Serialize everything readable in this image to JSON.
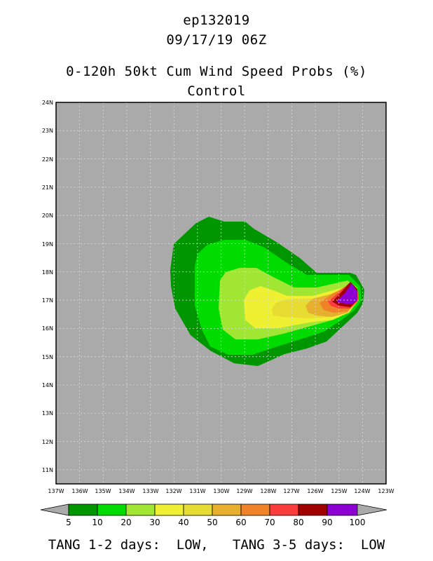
{
  "header": {
    "storm_id": "ep132019",
    "datetime": "09/17/19 06Z",
    "product": "0-120h 50kt Cum Wind Speed Probs (%)",
    "run": "Control"
  },
  "map": {
    "lat_labels": [
      "24N",
      "23N",
      "22N",
      "21N",
      "20N",
      "19N",
      "18N",
      "17N",
      "16N",
      "15N",
      "14N",
      "13N",
      "12N",
      "11N"
    ],
    "lon_labels": [
      "137W",
      "136W",
      "135W",
      "134W",
      "133W",
      "132W",
      "131W",
      "130W",
      "129W",
      "128W",
      "127W",
      "126W",
      "125W",
      "124W",
      "123W"
    ],
    "lat_range": [
      10.5,
      24
    ],
    "lon_range": [
      -137,
      -123
    ],
    "background_color": "#aaaaaa",
    "grid": true
  },
  "colorbar": {
    "levels": [
      "5",
      "10",
      "20",
      "30",
      "40",
      "50",
      "60",
      "70",
      "80",
      "90",
      "100"
    ],
    "colors": [
      "#009600",
      "#00dc00",
      "#a0e632",
      "#f0f032",
      "#e6dc32",
      "#e6af2d",
      "#f08228",
      "#fa3c3c",
      "#a00000",
      "#8c00d2"
    ],
    "under_color": "#aaaaaa",
    "over_color": "#aaaaaa"
  },
  "footer": {
    "text": "TANG 1-2 days:  LOW,   TANG 3-5 days:  LOW"
  }
}
